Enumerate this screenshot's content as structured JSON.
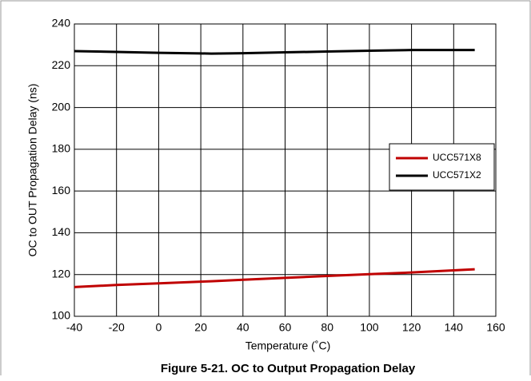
{
  "chart_data": {
    "type": "line",
    "caption": "Figure 5-21. OC to Output Propagation Delay",
    "xlabel": "Temperature (˚C)",
    "ylabel": "OC to OUT Propagation Delay (ns)",
    "x": [
      -40,
      -20,
      0,
      20,
      25,
      40,
      60,
      80,
      100,
      120,
      150
    ],
    "series": [
      {
        "name": "UCC571X8",
        "color": "#c00000",
        "values": [
          114,
          115,
          115.8,
          116.6,
          116.8,
          117.5,
          118.4,
          119.3,
          120.2,
          121,
          122.5
        ]
      },
      {
        "name": "UCC571X2",
        "color": "#000000",
        "values": [
          227,
          226.6,
          226.2,
          225.9,
          225.8,
          226,
          226.4,
          226.8,
          227.2,
          227.5,
          227.5
        ]
      }
    ],
    "xlim": [
      -40,
      160
    ],
    "xticks": [
      -40,
      -20,
      0,
      20,
      40,
      60,
      80,
      100,
      120,
      140,
      160
    ],
    "ylim": [
      100,
      240
    ],
    "yticks": [
      100,
      120,
      140,
      160,
      180,
      200,
      220,
      240
    ],
    "grid": true,
    "legend": "right"
  }
}
